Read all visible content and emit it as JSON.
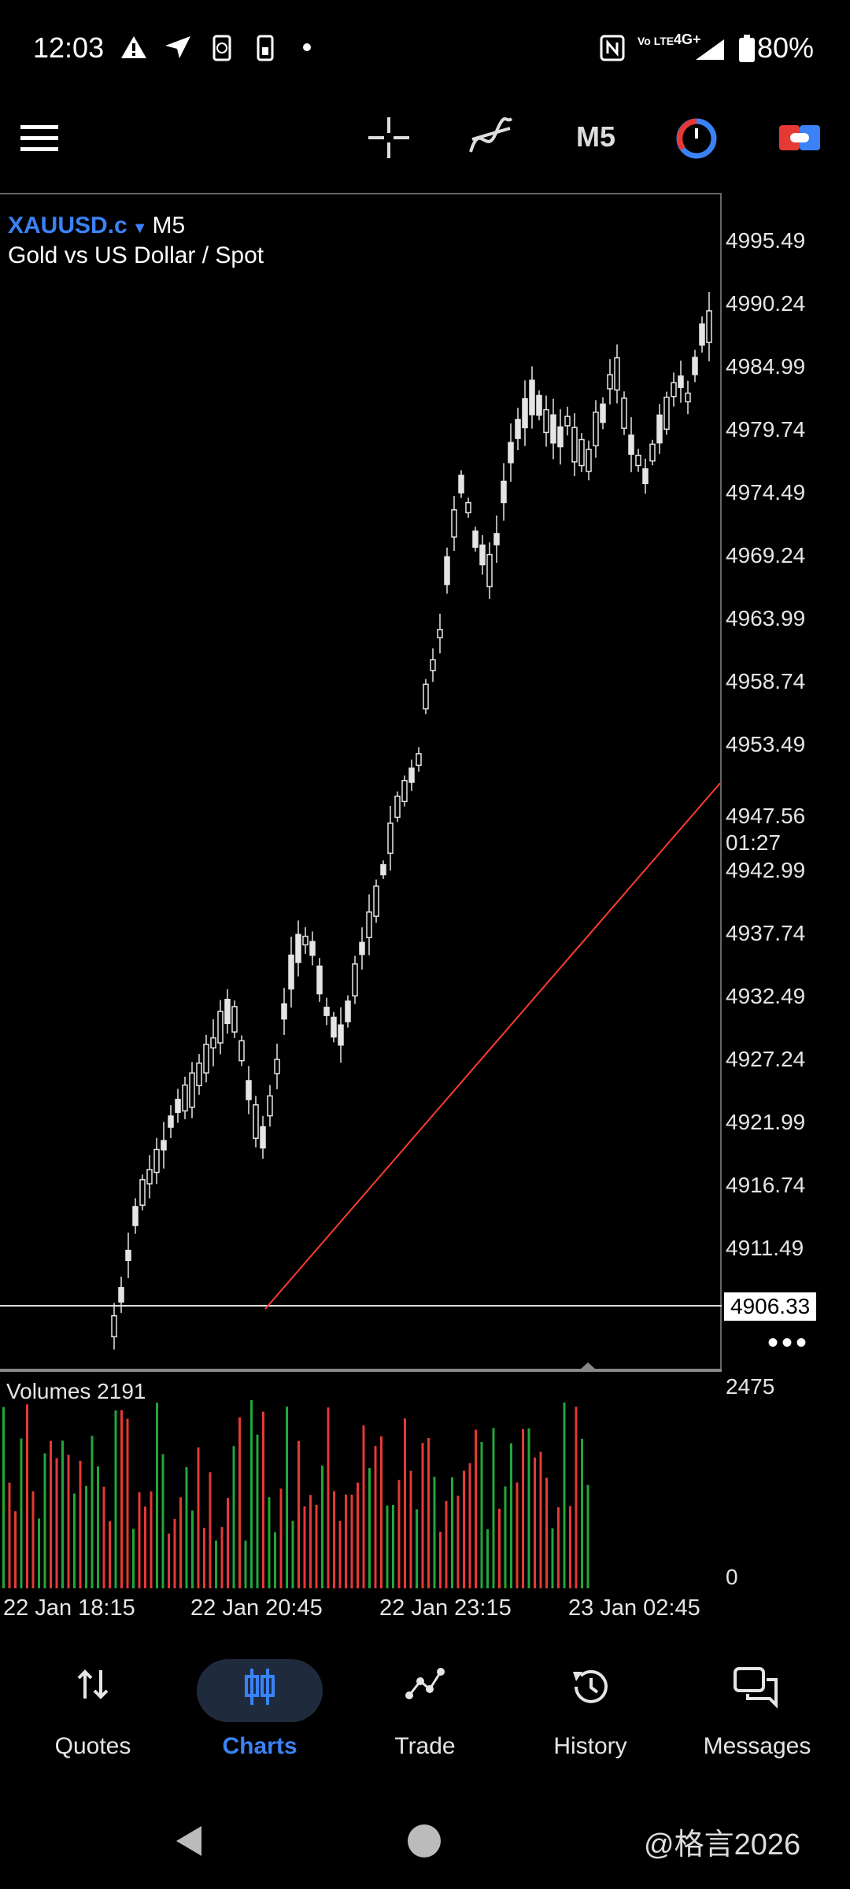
{
  "status_bar": {
    "time": "12:03",
    "battery": "80%",
    "network": "4G+",
    "volte": "Vo LTE",
    "icons": [
      "warning-icon",
      "send-icon",
      "phone-sync-icon",
      "sim-icon",
      "dot-icon",
      "nfc-icon",
      "volte-icon",
      "signal-icon",
      "battery-icon"
    ]
  },
  "toolbar": {
    "timeframe": "M5",
    "icons": [
      "menu-icon",
      "crosshair-icon",
      "indicators-icon",
      "timeframe-label",
      "clock-icon",
      "trade-toggle-icon"
    ]
  },
  "chart": {
    "symbol": "XAUUSD.c",
    "timeframe": "M5",
    "description": "Gold vs US Dollar / Spot",
    "price_axis": [
      "4995.49",
      "4990.24",
      "4984.99",
      "4979.74",
      "4974.49",
      "4969.24",
      "4963.99",
      "4958.74",
      "4953.49",
      "4942.99",
      "4937.74",
      "4932.49",
      "4927.24",
      "4921.99",
      "4916.74",
      "4911.49"
    ],
    "current_price": "4947.56",
    "countdown": "01:27",
    "marker_price": "4906.33",
    "volumes_label": "Volumes 2191",
    "volume_max": "2475",
    "volume_zero": "0",
    "time_axis": [
      "22 Jan 18:15",
      "22 Jan 20:45",
      "22 Jan 23:15",
      "23 Jan 02:45"
    ],
    "colors": {
      "up_volume": "#22a63a",
      "down_volume": "#e53935",
      "trendline": "#ff3b30",
      "candle": "#e5e5e5"
    }
  },
  "bottom_nav": {
    "items": [
      {
        "label": "Quotes",
        "icon": "quotes-icon"
      },
      {
        "label": "Charts",
        "icon": "charts-icon",
        "active": true
      },
      {
        "label": "Trade",
        "icon": "trade-icon"
      },
      {
        "label": "History",
        "icon": "history-icon"
      },
      {
        "label": "Messages",
        "icon": "messages-icon"
      }
    ]
  },
  "watermark": "@格言2026"
}
